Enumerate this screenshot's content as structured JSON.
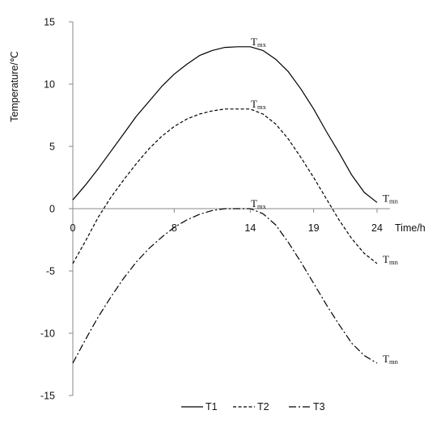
{
  "chart_data": {
    "type": "line",
    "title": "",
    "xlabel": "Time/h",
    "ylabel": "Temperature/℃",
    "x_ticks": [
      0,
      8,
      14,
      19,
      24
    ],
    "y_ticks": [
      15,
      10,
      5,
      0,
      -5,
      -10,
      -15
    ],
    "ylim": [
      -15,
      15
    ],
    "grid": false,
    "legend_position": "bottom",
    "series": [
      {
        "name": "T1",
        "line_style": "solid",
        "x": [
          0,
          1,
          2,
          3,
          4,
          5,
          6,
          7,
          8,
          9,
          10,
          11,
          12,
          13,
          14,
          15,
          16,
          17,
          18,
          19,
          20,
          21,
          22,
          23,
          24
        ],
        "values": [
          0.7,
          1.9,
          3.2,
          4.6,
          6.0,
          7.4,
          8.6,
          9.8,
          10.8,
          11.6,
          12.3,
          12.7,
          12.95,
          13.0,
          13.0,
          12.7,
          12.0,
          11.0,
          9.6,
          8.0,
          6.2,
          4.5,
          2.7,
          1.3,
          0.5
        ]
      },
      {
        "name": "T2",
        "line_style": "dashed",
        "x": [
          0,
          1,
          2,
          3,
          4,
          5,
          6,
          7,
          8,
          9,
          10,
          11,
          12,
          13,
          14,
          15,
          16,
          17,
          18,
          19,
          20,
          21,
          22,
          23,
          24
        ],
        "values": [
          -4.4,
          -2.6,
          -0.7,
          0.9,
          2.3,
          3.6,
          4.8,
          5.8,
          6.6,
          7.2,
          7.6,
          7.85,
          8.0,
          8.0,
          8.0,
          7.6,
          6.8,
          5.6,
          4.1,
          2.5,
          0.8,
          -0.9,
          -2.4,
          -3.6,
          -4.4
        ]
      },
      {
        "name": "T3",
        "line_style": "dash-dot",
        "x": [
          0,
          1,
          2,
          3,
          4,
          5,
          6,
          7,
          8,
          9,
          10,
          11,
          12,
          13,
          14,
          15,
          16,
          17,
          18,
          19,
          20,
          21,
          22,
          23,
          24
        ],
        "values": [
          -12.4,
          -10.5,
          -8.7,
          -7.1,
          -5.6,
          -4.3,
          -3.2,
          -2.3,
          -1.5,
          -0.9,
          -0.45,
          -0.15,
          0.0,
          0.0,
          0.0,
          -0.4,
          -1.3,
          -2.7,
          -4.3,
          -6.0,
          -7.7,
          -9.3,
          -10.8,
          -11.8,
          -12.4
        ]
      }
    ],
    "annotations": [
      {
        "base": "T",
        "sub": "mx",
        "x": 14.3,
        "y": 13.0,
        "series": "T1"
      },
      {
        "base": "T",
        "sub": "mx",
        "x": 14.3,
        "y": 8.0,
        "series": "T2"
      },
      {
        "base": "T",
        "sub": "mx",
        "x": 14.3,
        "y": 0.0,
        "series": "T3"
      },
      {
        "base": "T",
        "sub": "mn",
        "x": 24.0,
        "y": 0.5,
        "series": "T1"
      },
      {
        "base": "T",
        "sub": "mn",
        "x": 24.0,
        "y": -4.4,
        "series": "T2"
      },
      {
        "base": "T",
        "sub": "mn",
        "x": 24.0,
        "y": -12.4,
        "series": "T3"
      }
    ]
  },
  "colors": {
    "axis": "#888888",
    "line": "#000000",
    "text": "#111111"
  }
}
